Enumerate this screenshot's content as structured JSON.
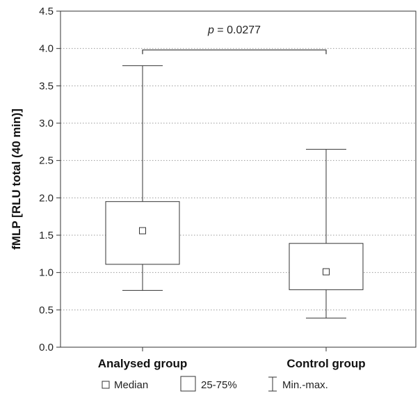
{
  "chart_data": {
    "type": "box",
    "ylabel": "fMLP [RLU total (40 min)]",
    "xlabel": "",
    "ylim": [
      0,
      4.5
    ],
    "yticks": [
      "0.0",
      "0.5",
      "1.0",
      "1.5",
      "2.0",
      "2.5",
      "3.0",
      "3.5",
      "4.0",
      "4.5"
    ],
    "grid": "horizontal-dotted",
    "categories": [
      "Analysed group",
      "Control group"
    ],
    "boxes": [
      {
        "category": "Analysed group",
        "min": 0.76,
        "q1": 1.11,
        "median": 1.56,
        "q3": 1.95,
        "max": 3.77
      },
      {
        "category": "Control group",
        "min": 0.39,
        "q1": 0.77,
        "median": 1.01,
        "q3": 1.39,
        "max": 2.65
      }
    ],
    "annotation": {
      "text_italic": "p",
      "text_rest": " = 0.0277",
      "bracket_y": 3.98
    },
    "legend": {
      "placement": "bottom",
      "items": [
        {
          "symbol": "median-square",
          "label": "Median"
        },
        {
          "symbol": "box",
          "label": "25-75%"
        },
        {
          "symbol": "whisker",
          "label": "Min.-max."
        }
      ]
    }
  }
}
